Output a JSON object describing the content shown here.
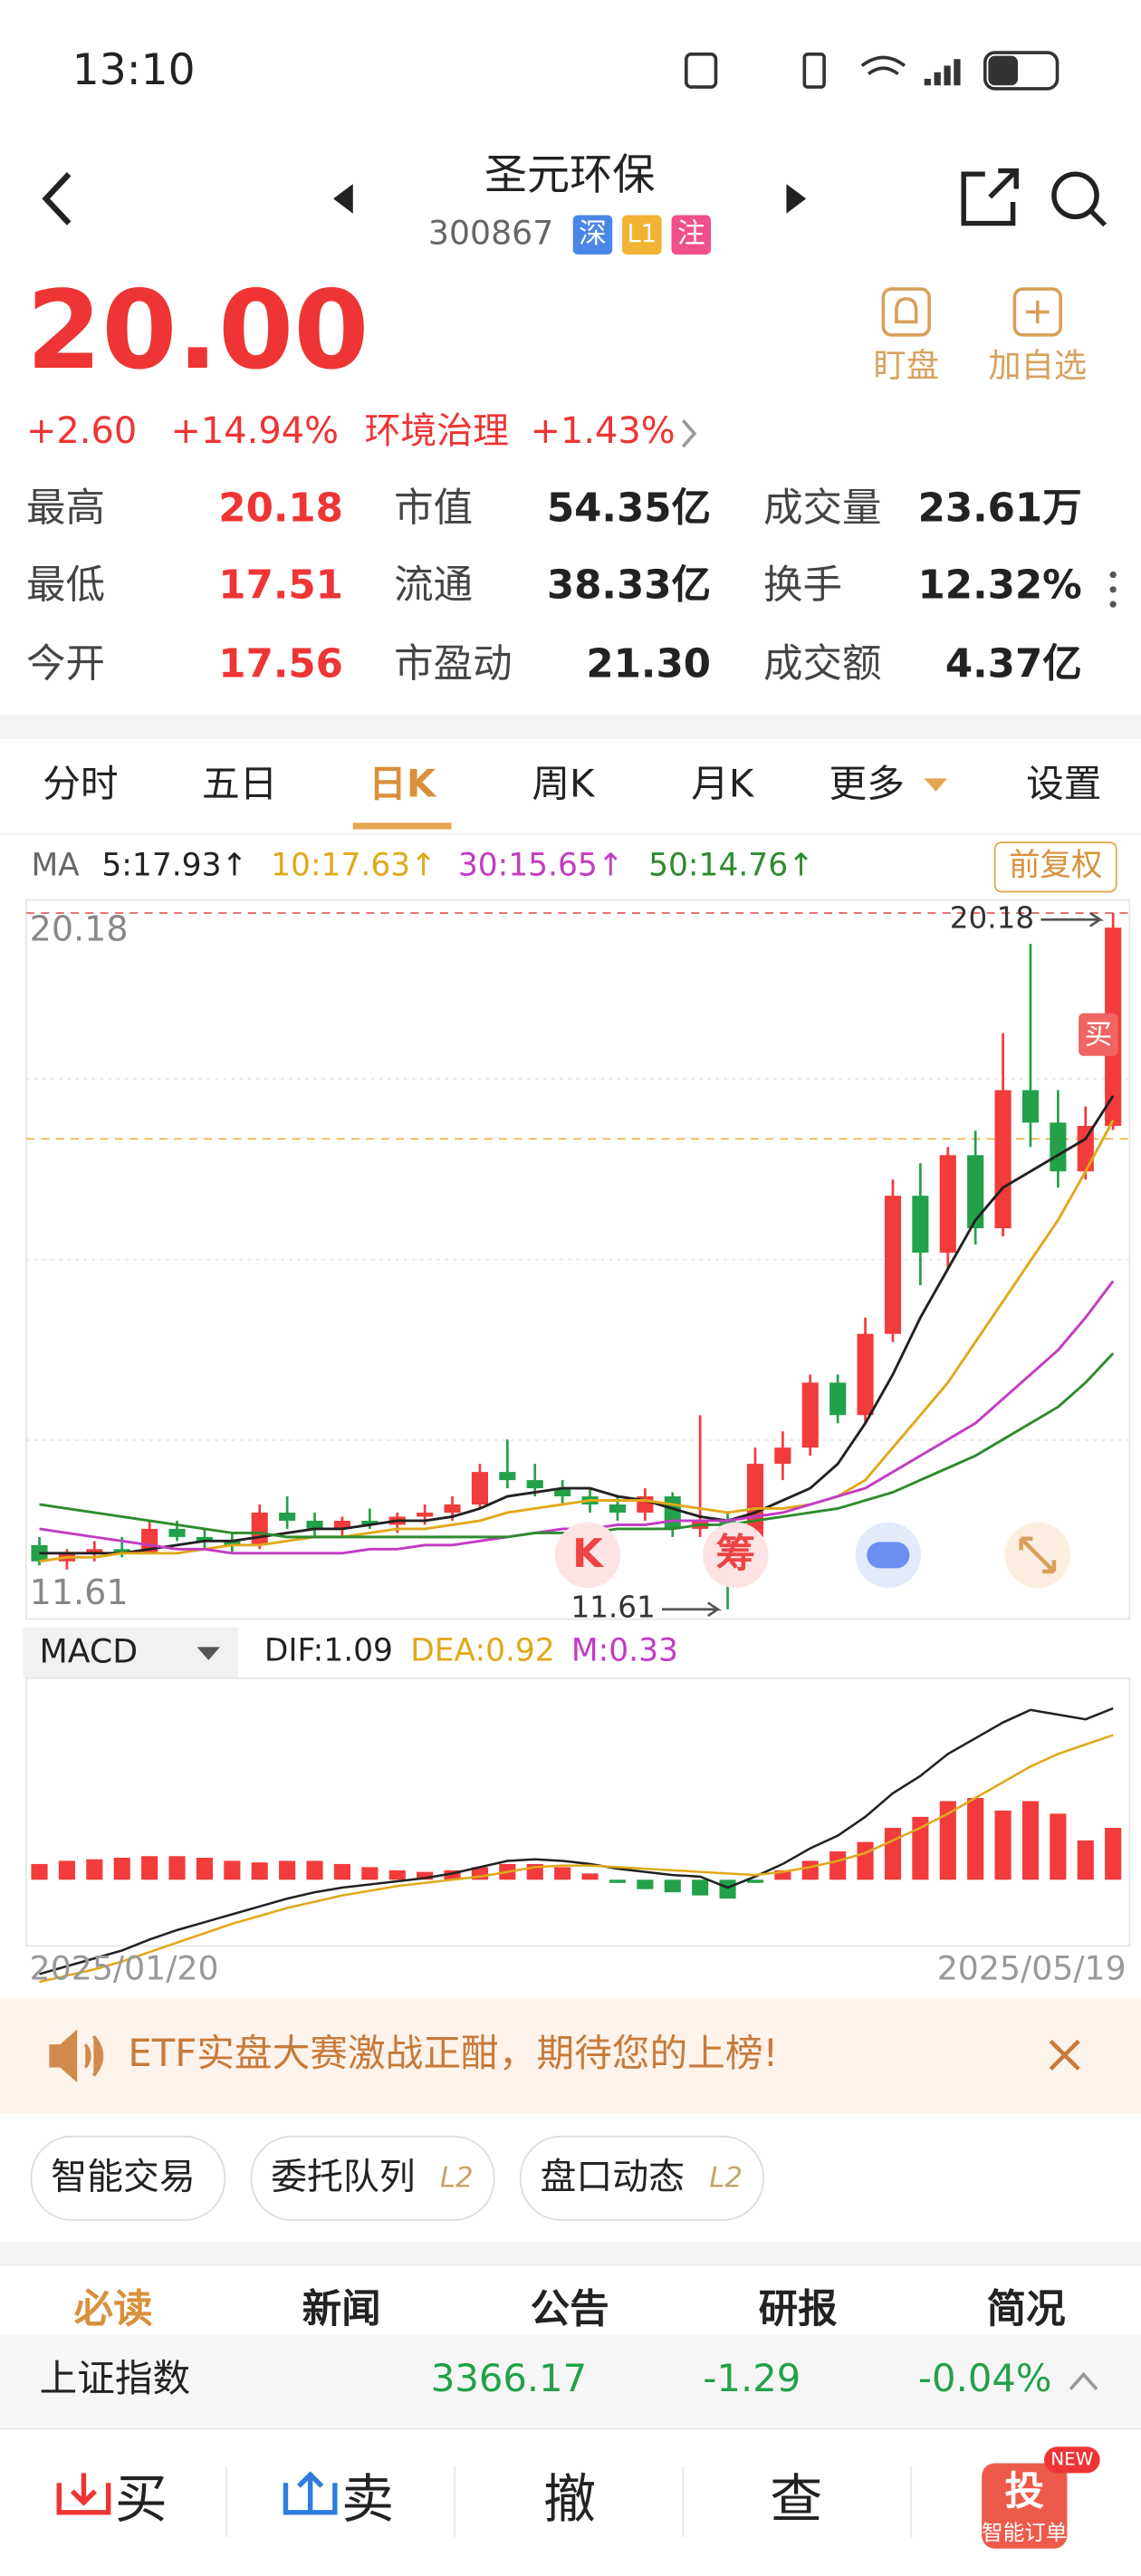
{
  "status": {
    "time": "13:10"
  },
  "header": {
    "title": "圣元环保",
    "code": "300867",
    "badges": [
      "深",
      "L1",
      "注"
    ]
  },
  "quote": {
    "price": "20.00",
    "change": "+2.60",
    "pct": "+14.94%",
    "sector": "环境治理",
    "sector_pct": "+1.43%",
    "actions": [
      "盯盘",
      "加自选"
    ]
  },
  "stats": [
    [
      "最高",
      "20.18"
    ],
    [
      "市值",
      "54.35亿"
    ],
    [
      "成交量",
      "23.61万"
    ],
    [
      "最低",
      "17.51"
    ],
    [
      "流通",
      "38.33亿"
    ],
    [
      "换手",
      "12.32%"
    ],
    [
      "今开",
      "17.56"
    ],
    [
      "市盈动",
      "21.30"
    ],
    [
      "成交额",
      "4.37亿"
    ]
  ],
  "tabs": [
    "分时",
    "五日",
    "日K",
    "周K",
    "月K",
    "更多",
    "设置"
  ],
  "chart_data": {
    "type": "candlestick",
    "ma_label": "MA",
    "adjust": "前复权",
    "ma": [
      {
        "name": "5:17.93↑",
        "color": "#222222",
        "values": [
          12.3,
          12.3,
          12.3,
          12.3,
          12.35,
          12.4,
          12.45,
          12.45,
          12.5,
          12.55,
          12.6,
          12.6,
          12.65,
          12.7,
          12.7,
          12.75,
          12.85,
          13.0,
          13.05,
          13.1,
          13.1,
          13.0,
          12.95,
          12.85,
          12.75,
          12.7,
          12.8,
          12.95,
          13.1,
          13.4,
          13.9,
          14.5,
          15.2,
          15.8,
          16.4,
          16.8,
          17.0,
          17.2,
          17.4,
          17.93
        ]
      },
      {
        "name": "10:17.63↑",
        "color": "#e0a91a",
        "values": [
          12.2,
          12.25,
          12.25,
          12.3,
          12.3,
          12.3,
          12.35,
          12.4,
          12.4,
          12.45,
          12.5,
          12.5,
          12.55,
          12.6,
          12.6,
          12.65,
          12.7,
          12.8,
          12.85,
          12.9,
          12.95,
          12.95,
          12.95,
          12.9,
          12.85,
          12.8,
          12.85,
          12.85,
          12.9,
          13.0,
          13.2,
          13.6,
          14.0,
          14.4,
          14.9,
          15.4,
          15.9,
          16.4,
          17.0,
          17.63
        ]
      },
      {
        "name": "30:15.65↑",
        "color": "#c23bc4",
        "values": [
          12.6,
          12.55,
          12.5,
          12.45,
          12.4,
          12.35,
          12.35,
          12.3,
          12.3,
          12.3,
          12.3,
          12.3,
          12.35,
          12.35,
          12.4,
          12.4,
          12.45,
          12.5,
          12.55,
          12.6,
          12.6,
          12.65,
          12.65,
          12.7,
          12.7,
          12.7,
          12.75,
          12.8,
          12.9,
          13.0,
          13.1,
          13.3,
          13.5,
          13.7,
          13.9,
          14.2,
          14.5,
          14.8,
          15.2,
          15.65
        ]
      },
      {
        "name": "50:14.76↑",
        "color": "#2e8b2e",
        "values": [
          12.9,
          12.85,
          12.8,
          12.75,
          12.7,
          12.65,
          12.6,
          12.55,
          12.55,
          12.5,
          12.5,
          12.5,
          12.5,
          12.5,
          12.5,
          12.5,
          12.5,
          12.5,
          12.55,
          12.55,
          12.55,
          12.6,
          12.6,
          12.6,
          12.65,
          12.65,
          12.7,
          12.75,
          12.8,
          12.85,
          12.95,
          13.05,
          13.2,
          13.35,
          13.5,
          13.7,
          13.9,
          14.1,
          14.4,
          14.76
        ]
      }
    ],
    "candles": [
      {
        "o": 12.4,
        "h": 12.5,
        "l": 12.15,
        "c": 12.2
      },
      {
        "o": 12.2,
        "h": 12.35,
        "l": 12.1,
        "c": 12.3
      },
      {
        "o": 12.3,
        "h": 12.45,
        "l": 12.2,
        "c": 12.35
      },
      {
        "o": 12.35,
        "h": 12.5,
        "l": 12.25,
        "c": 12.3
      },
      {
        "o": 12.3,
        "h": 12.7,
        "l": 12.3,
        "c": 12.6
      },
      {
        "o": 12.6,
        "h": 12.7,
        "l": 12.45,
        "c": 12.5
      },
      {
        "o": 12.5,
        "h": 12.6,
        "l": 12.35,
        "c": 12.45
      },
      {
        "o": 12.45,
        "h": 12.55,
        "l": 12.3,
        "c": 12.4
      },
      {
        "o": 12.4,
        "h": 12.9,
        "l": 12.35,
        "c": 12.8
      },
      {
        "o": 12.8,
        "h": 13.0,
        "l": 12.6,
        "c": 12.7
      },
      {
        "o": 12.7,
        "h": 12.8,
        "l": 12.5,
        "c": 12.6
      },
      {
        "o": 12.6,
        "h": 12.75,
        "l": 12.5,
        "c": 12.7
      },
      {
        "o": 12.7,
        "h": 12.85,
        "l": 12.6,
        "c": 12.65
      },
      {
        "o": 12.65,
        "h": 12.8,
        "l": 12.55,
        "c": 12.75
      },
      {
        "o": 12.75,
        "h": 12.9,
        "l": 12.65,
        "c": 12.8
      },
      {
        "o": 12.8,
        "h": 13.0,
        "l": 12.7,
        "c": 12.9
      },
      {
        "o": 12.9,
        "h": 13.4,
        "l": 12.85,
        "c": 13.3
      },
      {
        "o": 13.3,
        "h": 13.7,
        "l": 13.1,
        "c": 13.2
      },
      {
        "o": 13.2,
        "h": 13.4,
        "l": 13.0,
        "c": 13.1
      },
      {
        "o": 13.1,
        "h": 13.2,
        "l": 12.9,
        "c": 13.0
      },
      {
        "o": 13.0,
        "h": 13.1,
        "l": 12.8,
        "c": 12.9
      },
      {
        "o": 12.9,
        "h": 13.0,
        "l": 12.7,
        "c": 12.8
      },
      {
        "o": 12.8,
        "h": 13.1,
        "l": 12.7,
        "c": 13.0
      },
      {
        "o": 13.0,
        "h": 13.05,
        "l": 12.5,
        "c": 12.6
      },
      {
        "o": 12.6,
        "h": 14.0,
        "l": 12.5,
        "c": 12.7
      },
      {
        "o": 12.7,
        "h": 12.8,
        "l": 11.61,
        "c": 12.5
      },
      {
        "o": 12.5,
        "h": 13.6,
        "l": 12.4,
        "c": 13.4
      },
      {
        "o": 13.4,
        "h": 13.8,
        "l": 13.2,
        "c": 13.6
      },
      {
        "o": 13.6,
        "h": 14.5,
        "l": 13.5,
        "c": 14.4
      },
      {
        "o": 14.4,
        "h": 14.5,
        "l": 13.9,
        "c": 14.0
      },
      {
        "o": 14.0,
        "h": 15.2,
        "l": 13.9,
        "c": 15.0
      },
      {
        "o": 15.0,
        "h": 16.9,
        "l": 14.9,
        "c": 16.7
      },
      {
        "o": 16.7,
        "h": 17.1,
        "l": 15.6,
        "c": 16.0
      },
      {
        "o": 16.0,
        "h": 17.3,
        "l": 15.8,
        "c": 17.2
      },
      {
        "o": 17.2,
        "h": 17.5,
        "l": 16.1,
        "c": 16.3
      },
      {
        "o": 16.3,
        "h": 18.7,
        "l": 16.2,
        "c": 18.0
      },
      {
        "o": 18.0,
        "h": 19.8,
        "l": 17.3,
        "c": 17.6
      },
      {
        "o": 17.6,
        "h": 18.0,
        "l": 16.8,
        "c": 17.0
      },
      {
        "o": 17.0,
        "h": 17.8,
        "l": 16.9,
        "c": 17.56
      },
      {
        "o": 17.56,
        "h": 20.18,
        "l": 17.51,
        "c": 20.0
      }
    ],
    "up_color": "#f23b3b",
    "down_color": "#23a14a",
    "ylim": [
      11.61,
      20.18
    ],
    "ref_line": 17.4,
    "buy": "买",
    "icons": [
      "K",
      "筹"
    ],
    "macd": {
      "name": "MACD",
      "legend": [
        {
          "name": "DIF:1.09",
          "color": "#222222"
        },
        {
          "name": "DEA:0.92",
          "color": "#e0a91a"
        },
        {
          "name": "M:0.33",
          "color": "#c23bc4"
        }
      ],
      "ylim": [
        -0.4,
        1.25
      ],
      "m": [
        0.1,
        0.12,
        0.13,
        0.14,
        0.15,
        0.15,
        0.14,
        0.12,
        0.11,
        0.12,
        0.12,
        0.1,
        0.08,
        0.06,
        0.05,
        0.06,
        0.08,
        0.1,
        0.1,
        0.08,
        0.04,
        -0.02,
        -0.06,
        -0.08,
        -0.1,
        -0.12,
        -0.02,
        0.06,
        0.12,
        0.18,
        0.24,
        0.33,
        0.4,
        0.5,
        0.52,
        0.44,
        0.5,
        0.42,
        0.25,
        0.33
      ],
      "dif": [
        -0.6,
        -0.55,
        -0.5,
        -0.45,
        -0.38,
        -0.32,
        -0.27,
        -0.22,
        -0.17,
        -0.12,
        -0.08,
        -0.05,
        -0.03,
        -0.01,
        0.01,
        0.04,
        0.08,
        0.12,
        0.13,
        0.12,
        0.1,
        0.07,
        0.05,
        0.03,
        0.02,
        -0.05,
        0.02,
        0.1,
        0.2,
        0.28,
        0.4,
        0.55,
        0.66,
        0.8,
        0.9,
        1.0,
        1.08,
        1.05,
        1.02,
        1.09
      ],
      "dea": [
        -0.65,
        -0.61,
        -0.57,
        -0.52,
        -0.46,
        -0.4,
        -0.34,
        -0.28,
        -0.23,
        -0.18,
        -0.14,
        -0.1,
        -0.07,
        -0.04,
        -0.02,
        0.0,
        0.02,
        0.05,
        0.08,
        0.09,
        0.09,
        0.08,
        0.07,
        0.06,
        0.05,
        0.04,
        0.03,
        0.05,
        0.08,
        0.12,
        0.17,
        0.25,
        0.33,
        0.42,
        0.52,
        0.62,
        0.72,
        0.8,
        0.86,
        0.92
      ]
    },
    "dates": [
      "2025/01/20",
      "2025/05/19"
    ]
  },
  "banner": "ETF实盘大赛激战正酣，期待您的上榜!",
  "chips": [
    {
      "text": "智能交易"
    },
    {
      "text": "委托队列",
      "tag": "L2"
    },
    {
      "text": "盘口动态",
      "tag": "L2"
    }
  ],
  "news_tabs": [
    "必读",
    "新闻",
    "公告",
    "研报",
    "简况"
  ],
  "index": {
    "name": "上证指数",
    "value": "3366.17",
    "change": "-1.29",
    "pct": "-0.04%"
  },
  "nav": [
    "买",
    "卖",
    "撤",
    "查"
  ],
  "promo": {
    "icon": "投",
    "label": "智能订单",
    "badge": "NEW"
  }
}
